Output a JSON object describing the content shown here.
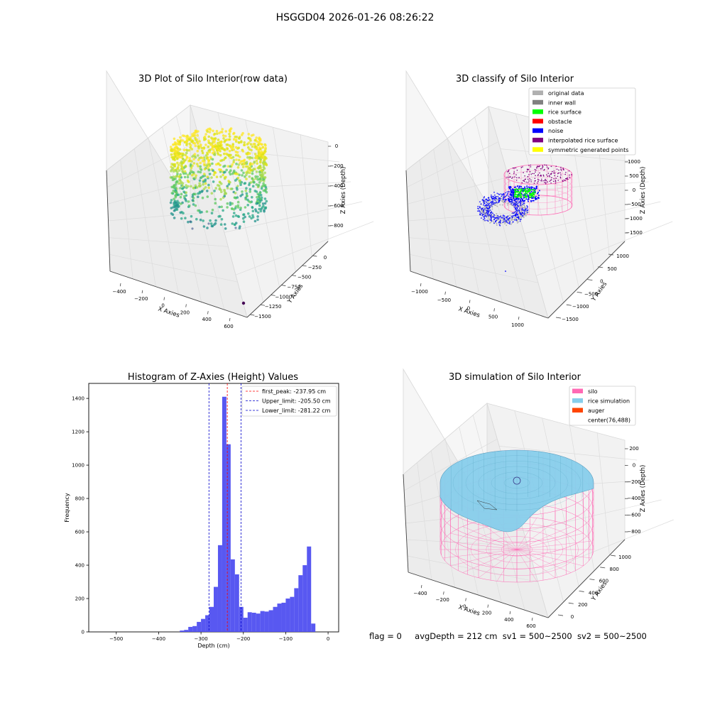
{
  "suptitle": "HSGGD04 2026-01-26 08:26:22",
  "status_line": {
    "flag": "flag = 0",
    "avg_depth": "avgDepth = 212 cm",
    "sv1": "sv1 = 500~2500",
    "sv2": "sv2 = 500~2500"
  },
  "colors": {
    "hist": "#4f4ff0",
    "peak": "#ff0000",
    "limit": "#0000cc",
    "silo": "#ff69b4",
    "rice": "#87ceeb",
    "auger": "#ff4500",
    "noise": "#0000ff",
    "rice_surface": "#00ff00",
    "inner_wall": "#808080",
    "original": "#b0b0b0",
    "obstacle": "#ff0000",
    "interp": "#800080",
    "symmetric": "#ffff00"
  },
  "chart_data": [
    {
      "type": "scatter",
      "subtype": "3d",
      "title": "3D Plot of Silo Interior(row data)",
      "xlabel": "X Axies",
      "ylabel": "Y Axies",
      "zlabel": "Z Axies (Depth)",
      "x_ticks": [
        "−400",
        "−200",
        "0",
        "200",
        "400",
        "600"
      ],
      "y_ticks": [
        "0",
        "−250",
        "−500",
        "−750",
        "−1000",
        "−1250",
        "−1500"
      ],
      "z_ticks": [
        "0",
        "−200",
        "−400",
        "−600",
        "−800"
      ],
      "colormap": "viridis"
    },
    {
      "type": "scatter",
      "subtype": "3d",
      "title": "3D classify of Silo Interior",
      "xlabel": "X Axies",
      "ylabel": "Y Axies",
      "zlabel": "Z Axies (Depth)",
      "x_ticks": [
        "−1000",
        "−500",
        "0",
        "500",
        "1000"
      ],
      "y_ticks": [
        "1000",
        "500",
        "0",
        "−500",
        "−1000",
        "−1500"
      ],
      "z_ticks": [
        "1000",
        "500",
        "0",
        "−500",
        "−1000",
        "−1500"
      ],
      "legend": [
        "original data",
        "inner wall",
        "rice surface",
        "obstacle",
        "noise",
        "interpolated rice surface",
        "symmetric generated points"
      ],
      "legend_position": "top-right"
    },
    {
      "type": "bar",
      "subtype": "histogram",
      "title": "Histogram of Z-Axies (Height) Values",
      "xlabel": "Depth (cm)",
      "ylabel": "Frequency",
      "xlim": [
        -565,
        25
      ],
      "ylim": [
        0,
        1490
      ],
      "x_ticks": [
        -500,
        -400,
        -300,
        -200,
        -100,
        0
      ],
      "y_ticks": [
        0,
        200,
        400,
        600,
        800,
        1000,
        1200,
        1400
      ],
      "bins": [
        {
          "x0": -350,
          "x1": -340,
          "value": 8
        },
        {
          "x0": -340,
          "x1": -330,
          "value": 12
        },
        {
          "x0": -330,
          "x1": -320,
          "value": 30
        },
        {
          "x0": -320,
          "x1": -310,
          "value": 35
        },
        {
          "x0": -310,
          "x1": -300,
          "value": 60
        },
        {
          "x0": -300,
          "x1": -290,
          "value": 78
        },
        {
          "x0": -290,
          "x1": -280,
          "value": 100
        },
        {
          "x0": -280,
          "x1": -270,
          "value": 150
        },
        {
          "x0": -270,
          "x1": -260,
          "value": 270
        },
        {
          "x0": -260,
          "x1": -250,
          "value": 520
        },
        {
          "x0": -250,
          "x1": -240,
          "value": 1410
        },
        {
          "x0": -240,
          "x1": -230,
          "value": 1125
        },
        {
          "x0": -230,
          "x1": -220,
          "value": 435
        },
        {
          "x0": -220,
          "x1": -210,
          "value": 345
        },
        {
          "x0": -210,
          "x1": -200,
          "value": 150
        },
        {
          "x0": -200,
          "x1": -190,
          "value": 85
        },
        {
          "x0": -190,
          "x1": -180,
          "value": 118
        },
        {
          "x0": -180,
          "x1": -170,
          "value": 115
        },
        {
          "x0": -170,
          "x1": -160,
          "value": 110
        },
        {
          "x0": -160,
          "x1": -150,
          "value": 125
        },
        {
          "x0": -150,
          "x1": -140,
          "value": 122
        },
        {
          "x0": -140,
          "x1": -130,
          "value": 130
        },
        {
          "x0": -130,
          "x1": -120,
          "value": 150
        },
        {
          "x0": -120,
          "x1": -110,
          "value": 170
        },
        {
          "x0": -110,
          "x1": -100,
          "value": 175
        },
        {
          "x0": -100,
          "x1": -90,
          "value": 200
        },
        {
          "x0": -90,
          "x1": -80,
          "value": 210
        },
        {
          "x0": -80,
          "x1": -70,
          "value": 262
        },
        {
          "x0": -70,
          "x1": -60,
          "value": 340
        },
        {
          "x0": -60,
          "x1": -50,
          "value": 400
        },
        {
          "x0": -50,
          "x1": -40,
          "value": 512
        },
        {
          "x0": -40,
          "x1": -30,
          "value": 50
        }
      ],
      "lines": [
        {
          "name": "first_peak: -237.95 cm",
          "x": -237.95,
          "color": "red"
        },
        {
          "name": "Upper_limit: -205.50 cm",
          "x": -205.5,
          "color": "blue"
        },
        {
          "name": "Lower_limit: -281.22 cm",
          "x": -281.22,
          "color": "blue"
        }
      ],
      "legend_position": "top-right"
    },
    {
      "type": "area",
      "subtype": "3d-surface",
      "title": "3D simulation of Silo Interior",
      "xlabel": "X Axies",
      "ylabel": "Y Axies",
      "zlabel": "Z Axies (Depth)",
      "x_ticks": [
        "−400",
        "−200",
        "0",
        "200",
        "400",
        "600"
      ],
      "y_ticks": [
        "1000",
        "800",
        "600",
        "400",
        "200",
        "0"
      ],
      "z_ticks": [
        "200",
        "0",
        "−200",
        "−400",
        "−600",
        "−800"
      ],
      "legend": [
        "silo",
        "rice simulation",
        "auger",
        "center(76,488)"
      ],
      "legend_position": "top-right"
    }
  ]
}
